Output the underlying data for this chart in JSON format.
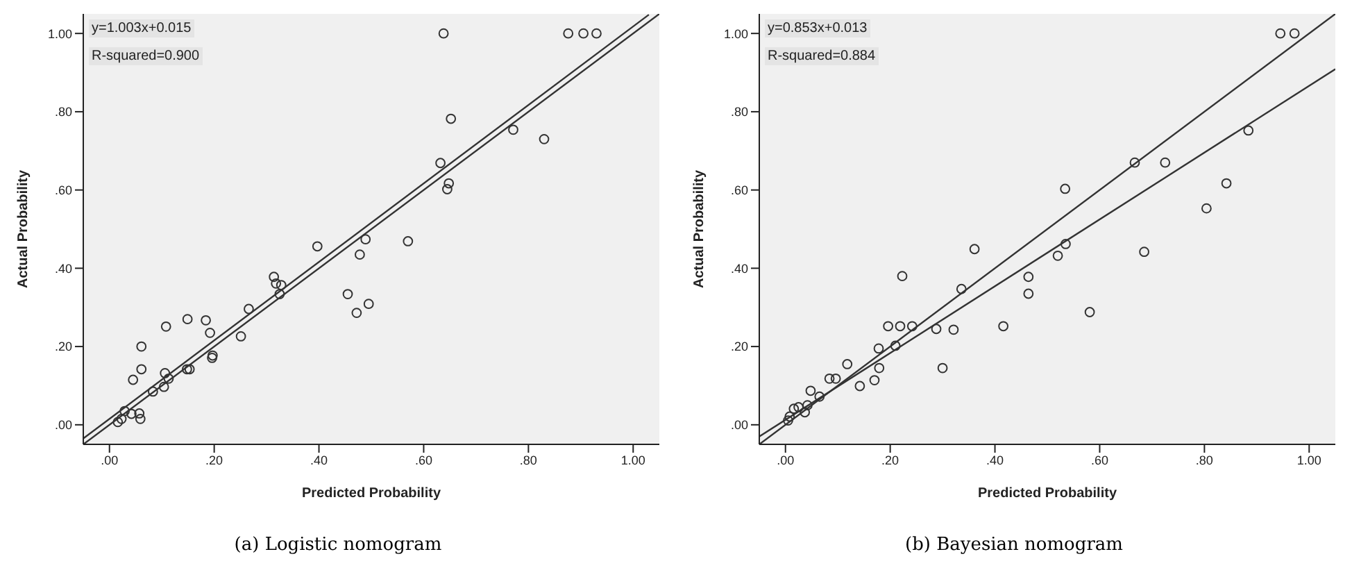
{
  "chart_data": [
    {
      "type": "scatter",
      "title": "(a) Logistic nomogram",
      "xlabel": "Predicted Probability",
      "ylabel": "Actual Probability",
      "annotations": [
        "y=1.003x+0.015",
        "R-squared=0.900"
      ],
      "xlim": [
        -0.05,
        1.05
      ],
      "ylim": [
        -0.05,
        1.05
      ],
      "xticks": [
        {
          "value": 0,
          "label": ".00"
        },
        {
          "value": 0.2,
          "label": ".20"
        },
        {
          "value": 0.4,
          "label": ".40"
        },
        {
          "value": 0.6,
          "label": ".60"
        },
        {
          "value": 0.8,
          "label": ".80"
        },
        {
          "value": 1,
          "label": "1.00"
        }
      ],
      "yticks": [
        {
          "value": 0,
          "label": ".00"
        },
        {
          "value": 0.2,
          "label": ".20"
        },
        {
          "value": 0.4,
          "label": ".40"
        },
        {
          "value": 0.6,
          "label": ".60"
        },
        {
          "value": 0.8,
          "label": ".80"
        },
        {
          "value": 1,
          "label": "1.00"
        }
      ],
      "grid": false,
      "marker": "circle",
      "series": [
        {
          "color": "#333333",
          "x": [
            0.397,
            0.489,
            0.478,
            0.455,
            0.472,
            0.495,
            0.314,
            0.318,
            0.328,
            0.325,
            0.266,
            0.251,
            0.184,
            0.192,
            0.197,
            0.196,
            0.149,
            0.108,
            0.061,
            0.061,
            0.045,
            0.106,
            0.113,
            0.104,
            0.083,
            0.148,
            0.153,
            0.029,
            0.042,
            0.057,
            0.059,
            0.023,
            0.016,
            0.638,
            0.876,
            0.905,
            0.93,
            0.652,
            0.771,
            0.83,
            0.632,
            0.648,
            0.645,
            0.57
          ],
          "values": [
            0.456,
            0.474,
            0.435,
            0.334,
            0.286,
            0.309,
            0.378,
            0.361,
            0.357,
            0.334,
            0.296,
            0.226,
            0.267,
            0.235,
            0.177,
            0.171,
            0.27,
            0.251,
            0.2,
            0.142,
            0.115,
            0.132,
            0.118,
            0.097,
            0.085,
            0.142,
            0.142,
            0.035,
            0.028,
            0.029,
            0.015,
            0.015,
            0.007,
            1.0,
            1.0,
            1.0,
            1.0,
            0.782,
            0.754,
            0.73,
            0.669,
            0.617,
            0.602,
            0.469
          ]
        },
        {
          "type": "line",
          "color": "#333333",
          "line_style": "solid",
          "marker": "none",
          "x": [
            -0.05,
            1.03
          ],
          "values": [
            -0.035,
            1.048
          ]
        },
        {
          "type": "line",
          "color": "#333333",
          "line_style": "solid",
          "marker": "none",
          "x": [
            -0.05,
            1.05
          ],
          "values": [
            -0.05,
            1.05
          ]
        }
      ]
    },
    {
      "type": "scatter",
      "title": "(b) Bayesian nomogram",
      "xlabel": "Predicted Probability",
      "ylabel": "Actual Probability",
      "annotations": [
        "y=0.853x+0.013",
        "R-squared=0.884"
      ],
      "xlim": [
        -0.05,
        1.05
      ],
      "ylim": [
        -0.05,
        1.05
      ],
      "xticks": [
        {
          "value": 0,
          "label": ".00"
        },
        {
          "value": 0.2,
          "label": ".20"
        },
        {
          "value": 0.4,
          "label": ".40"
        },
        {
          "value": 0.6,
          "label": ".60"
        },
        {
          "value": 0.8,
          "label": ".80"
        },
        {
          "value": 1,
          "label": "1.00"
        }
      ],
      "yticks": [
        {
          "value": 0,
          "label": ".00"
        },
        {
          "value": 0.2,
          "label": ".20"
        },
        {
          "value": 0.4,
          "label": ".40"
        },
        {
          "value": 0.6,
          "label": ".60"
        },
        {
          "value": 0.8,
          "label": ".80"
        },
        {
          "value": 1,
          "label": "1.00"
        }
      ],
      "grid": false,
      "marker": "circle",
      "series": [
        {
          "color": "#333333",
          "x": [
            0.361,
            0.223,
            0.336,
            0.464,
            0.464,
            0.52,
            0.416,
            0.196,
            0.219,
            0.242,
            0.288,
            0.321,
            0.178,
            0.21,
            0.3,
            0.179,
            0.17,
            0.142,
            0.118,
            0.084,
            0.096,
            0.048,
            0.065,
            0.042,
            0.037,
            0.025,
            0.016,
            0.008,
            0.005,
            0.945,
            0.972,
            0.884,
            0.667,
            0.725,
            0.842,
            0.534,
            0.804,
            0.535,
            0.685,
            0.581
          ],
          "values": [
            0.449,
            0.38,
            0.347,
            0.378,
            0.335,
            0.432,
            0.252,
            0.252,
            0.252,
            0.252,
            0.245,
            0.243,
            0.195,
            0.202,
            0.145,
            0.145,
            0.114,
            0.099,
            0.155,
            0.118,
            0.118,
            0.087,
            0.072,
            0.05,
            0.032,
            0.045,
            0.041,
            0.021,
            0.011,
            1.0,
            1.0,
            0.752,
            0.67,
            0.67,
            0.617,
            0.603,
            0.553,
            0.462,
            0.442,
            0.288
          ]
        },
        {
          "type": "line",
          "color": "#333333",
          "line_style": "solid",
          "marker": "none",
          "x": [
            -0.05,
            1.05
          ],
          "values": [
            -0.03,
            0.909
          ]
        },
        {
          "type": "line",
          "color": "#333333",
          "line_style": "solid",
          "marker": "none",
          "x": [
            -0.05,
            1.05
          ],
          "values": [
            -0.05,
            1.05
          ]
        }
      ]
    }
  ]
}
